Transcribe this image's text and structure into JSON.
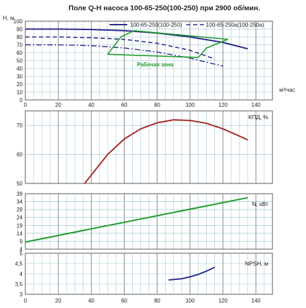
{
  "title": "Поле Q-H насоса 100-65-250(100-250) при 2900 об/мин.",
  "colors": {
    "grid": "#8fbfcf",
    "frame": "#5a5a5a",
    "main": "#2c2a8c",
    "green": "#1e9a2a",
    "red": "#a52a2a"
  },
  "legend": [
    {
      "label": "100-65-250(100-250)",
      "style": "solid"
    },
    {
      "label": "100-65-250а(100-250а)",
      "style": "dashed"
    }
  ],
  "zone_label": "Рабочая зона",
  "x_unit_label": "м³/час",
  "x_ticks": [
    0,
    20,
    40,
    60,
    80,
    100,
    120,
    140
  ],
  "chart_data": [
    {
      "type": "line",
      "ylabel": "H, м",
      "xlim": [
        0,
        150
      ],
      "ylim": [
        0,
        100
      ],
      "yticks": [
        0,
        10,
        20,
        30,
        40,
        50,
        60,
        70,
        80,
        90,
        100
      ],
      "series": [
        {
          "name": "100-65-250(100-250)",
          "style": "solid",
          "x": [
            0,
            20,
            40,
            60,
            80,
            100,
            120,
            135
          ],
          "y": [
            90,
            90,
            89.5,
            88,
            85,
            80,
            73,
            65
          ]
        },
        {
          "name": "100-65-250а(100-250а)",
          "style": "dashed",
          "x": [
            0,
            20,
            40,
            60,
            80,
            100,
            115
          ],
          "y": [
            80,
            80,
            79,
            77,
            72,
            63,
            52
          ]
        },
        {
          "style": "dashdot",
          "x": [
            0,
            20,
            40,
            60,
            80,
            100,
            120
          ],
          "y": [
            70,
            70,
            69,
            66,
            61,
            53,
            43
          ]
        }
      ],
      "zone": [
        {
          "x": [
            50,
            58,
            66
          ],
          "y": [
            58,
            80,
            88
          ]
        },
        {
          "x": [
            50,
            105
          ],
          "y": [
            58,
            54
          ]
        },
        {
          "x": [
            105,
            110,
            123
          ],
          "y": [
            54,
            66,
            77
          ]
        },
        {
          "x": [
            66,
            123
          ],
          "y": [
            88,
            77
          ]
        }
      ]
    },
    {
      "type": "line",
      "ylabel": "КПД, %",
      "xlim": [
        0,
        150
      ],
      "ylim": [
        50,
        75
      ],
      "yticks": [
        50,
        60,
        70
      ],
      "series": [
        {
          "x": [
            36,
            50,
            60,
            70,
            80,
            90,
            100,
            110,
            120,
            130,
            135
          ],
          "y": [
            50,
            60,
            65.3,
            68.8,
            70.9,
            71.9,
            71.7,
            70.7,
            68.8,
            66.3,
            65
          ]
        }
      ]
    },
    {
      "type": "line",
      "ylabel": "N, кВт",
      "xlim": [
        0,
        150
      ],
      "ylim": [
        4,
        39
      ],
      "yticks": [
        4,
        9,
        14,
        19,
        24,
        29,
        34,
        39
      ],
      "series": [
        {
          "x": [
            0,
            135
          ],
          "y": [
            8.5,
            36.5
          ]
        }
      ]
    },
    {
      "type": "line",
      "ylabel": "NPSH, м",
      "xlim": [
        0,
        150
      ],
      "ylim": [
        3,
        5
      ],
      "yticks": [
        3,
        3.5,
        4,
        4.5,
        5
      ],
      "ytick_labels": [
        "3",
        "3,5",
        "4",
        "4,5",
        "5"
      ],
      "series": [
        {
          "x": [
            87,
            95,
            100,
            105,
            110,
            115
          ],
          "y": [
            3.7,
            3.76,
            3.85,
            3.97,
            4.13,
            4.32
          ]
        }
      ]
    }
  ]
}
